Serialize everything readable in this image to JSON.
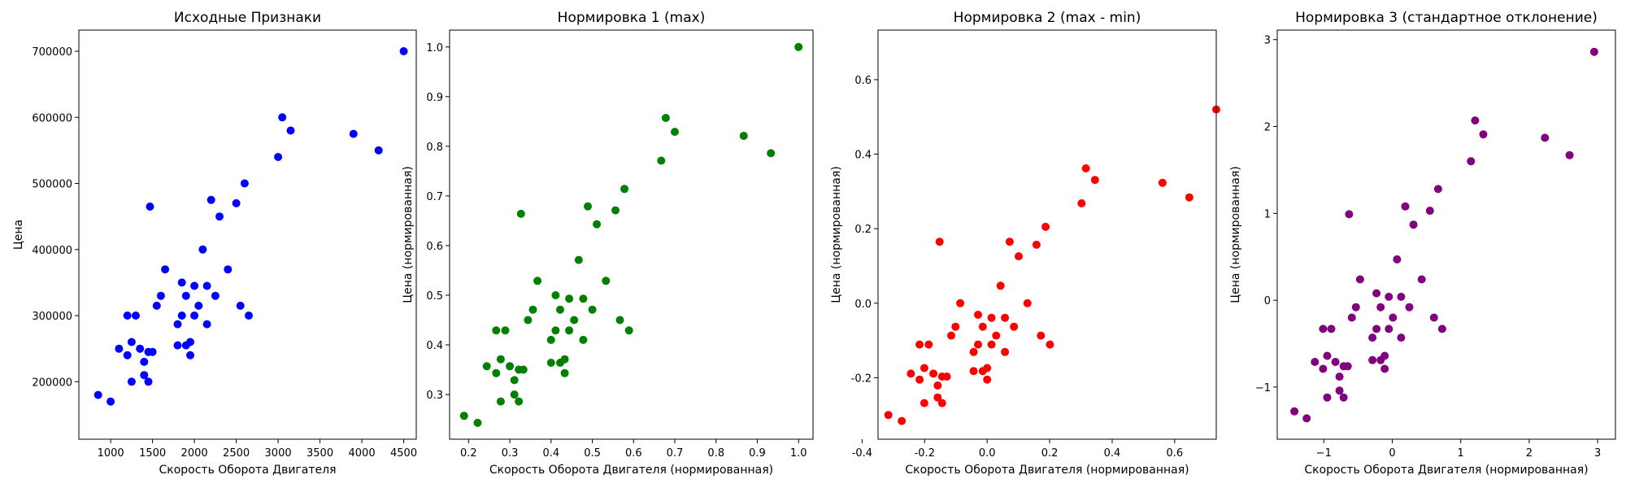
{
  "chart_data": [
    {
      "type": "scatter",
      "title": "Исходные Признаки",
      "xlabel": "Скорость Оборота Двигателя",
      "ylabel": "Цена",
      "xlim": [
        620,
        4650
      ],
      "ylim": [
        113000,
        732000
      ],
      "xticks": [
        1000,
        1500,
        2000,
        2500,
        3000,
        3500,
        4000,
        4500
      ],
      "xtick_labels": [
        "1000",
        "1500",
        "2000",
        "2500",
        "3000",
        "3500",
        "4000",
        "4500"
      ],
      "yticks": [
        200000,
        300000,
        400000,
        500000,
        600000,
        700000
      ],
      "ytick_labels": [
        "200000",
        "300000",
        "400000",
        "500000",
        "600000",
        "700000"
      ],
      "color": "#0000ff",
      "grid": false,
      "x": [
        850,
        1000,
        1100,
        1200,
        1200,
        1250,
        1250,
        1300,
        1350,
        1400,
        1400,
        1450,
        1450,
        1500,
        1550,
        1600,
        1650,
        1800,
        1800,
        1850,
        1850,
        1900,
        1900,
        1950,
        1950,
        2000,
        2000,
        2050,
        2100,
        2150,
        2150,
        2200,
        2250,
        2300,
        2400,
        2500,
        2550,
        2600,
        2650,
        3000,
        3050,
        3150,
        3900,
        4200,
        4500,
        1470
      ],
      "y": [
        180000,
        170000,
        250000,
        240000,
        300000,
        200000,
        260000,
        300000,
        250000,
        210000,
        230000,
        200000,
        245000,
        245000,
        315000,
        330000,
        370000,
        255000,
        287000,
        300000,
        350000,
        255000,
        330000,
        240000,
        260000,
        300000,
        345000,
        315000,
        400000,
        287000,
        345000,
        475000,
        330000,
        450000,
        370000,
        470000,
        315000,
        500000,
        300000,
        540000,
        600000,
        580000,
        575000,
        550000,
        700000,
        465000
      ]
    },
    {
      "type": "scatter",
      "title": "Нормировка 1 (max)",
      "xlabel": "Скорость Оборота Двигателя (нормированная)",
      "ylabel": "Цена (нормированная)",
      "xlim": [
        0.154,
        1.035
      ],
      "ylim": [
        0.21,
        1.034
      ],
      "xticks": [
        0.2,
        0.3,
        0.4,
        0.5,
        0.6,
        0.7,
        0.8,
        0.9,
        1.0
      ],
      "xtick_labels": [
        "0.2",
        "0.3",
        "0.4",
        "0.5",
        "0.6",
        "0.7",
        "0.8",
        "0.9",
        "1.0"
      ],
      "yticks": [
        0.3,
        0.4,
        0.5,
        0.6,
        0.7,
        0.8,
        0.9,
        1.0
      ],
      "ytick_labels": [
        "0.3",
        "0.4",
        "0.5",
        "0.6",
        "0.7",
        "0.8",
        "0.9",
        "1.0"
      ],
      "color": "#008000",
      "grid": false,
      "x": [
        0.189,
        0.222,
        0.244,
        0.267,
        0.267,
        0.278,
        0.278,
        0.289,
        0.3,
        0.311,
        0.311,
        0.322,
        0.322,
        0.333,
        0.344,
        0.356,
        0.367,
        0.4,
        0.4,
        0.411,
        0.411,
        0.422,
        0.422,
        0.433,
        0.433,
        0.444,
        0.444,
        0.456,
        0.467,
        0.478,
        0.478,
        0.489,
        0.5,
        0.511,
        0.533,
        0.556,
        0.567,
        0.578,
        0.589,
        0.667,
        0.678,
        0.7,
        0.867,
        0.933,
        1.0,
        0.327
      ],
      "y": [
        0.257,
        0.243,
        0.357,
        0.343,
        0.429,
        0.286,
        0.371,
        0.429,
        0.357,
        0.3,
        0.329,
        0.286,
        0.35,
        0.35,
        0.45,
        0.471,
        0.529,
        0.364,
        0.41,
        0.429,
        0.5,
        0.364,
        0.471,
        0.343,
        0.371,
        0.429,
        0.493,
        0.45,
        0.571,
        0.41,
        0.493,
        0.679,
        0.471,
        0.643,
        0.529,
        0.671,
        0.45,
        0.714,
        0.429,
        0.771,
        0.857,
        0.829,
        0.821,
        0.786,
        1.0,
        0.664
      ]
    },
    {
      "type": "scatter",
      "title": "Нормировка 2 (max - min)",
      "xlabel": "Скорость Оборота Двигателя (нормированная)",
      "ylabel": "Цена (нормированная)",
      "xlim": [
        -0.349,
        0.733
      ],
      "ylim": [
        -0.365,
        0.733
      ],
      "xticks": [
        -0.4,
        -0.2,
        0.0,
        0.2,
        0.4,
        0.6
      ],
      "xtick_labels": [
        "-0.4",
        "-0.2",
        "0.0",
        "0.2",
        "0.4",
        "0.6"
      ],
      "yticks": [
        -0.2,
        0.0,
        0.2,
        0.4,
        0.6
      ],
      "ytick_labels": [
        "-0.2",
        "0.0",
        "0.2",
        "0.4",
        "0.6"
      ],
      "color": "#ff0000",
      "grid": false,
      "x": [
        -0.316,
        -0.273,
        -0.244,
        -0.216,
        -0.216,
        -0.201,
        -0.201,
        -0.187,
        -0.172,
        -0.158,
        -0.158,
        -0.144,
        -0.144,
        -0.129,
        -0.115,
        -0.101,
        -0.086,
        -0.043,
        -0.043,
        -0.029,
        -0.029,
        -0.014,
        -0.014,
        0.0,
        0.0,
        0.014,
        0.014,
        0.029,
        0.043,
        0.057,
        0.057,
        0.072,
        0.086,
        0.101,
        0.129,
        0.158,
        0.172,
        0.187,
        0.201,
        0.302,
        0.316,
        0.345,
        0.561,
        0.647,
        0.733,
        -0.152
      ],
      "y": [
        -0.3,
        -0.316,
        -0.189,
        -0.205,
        -0.111,
        -0.268,
        -0.174,
        -0.111,
        -0.189,
        -0.253,
        -0.221,
        -0.268,
        -0.197,
        -0.197,
        -0.087,
        -0.063,
        0.0,
        -0.182,
        -0.131,
        -0.111,
        -0.031,
        -0.182,
        -0.063,
        -0.205,
        -0.174,
        -0.111,
        -0.039,
        -0.087,
        0.047,
        -0.131,
        -0.039,
        0.165,
        -0.063,
        0.126,
        0.0,
        0.157,
        -0.087,
        0.205,
        -0.111,
        0.268,
        0.362,
        0.331,
        0.323,
        0.284,
        0.52,
        0.165
      ]
    },
    {
      "type": "scatter",
      "title": "Нормировка 3 (стандартное отклонение)",
      "xlabel": "Скорость Оборота Двигателя (нормированная)",
      "ylabel": "Цена (нормированная)",
      "xlim": [
        -1.68,
        3.26
      ],
      "ylim": [
        -1.6,
        3.11
      ],
      "xticks": [
        -1,
        0,
        1,
        2,
        3
      ],
      "xtick_labels": [
        "−1",
        "0",
        "1",
        "2",
        "3"
      ],
      "yticks": [
        -1,
        0,
        1,
        2,
        3
      ],
      "ytick_labels": [
        "−1",
        "0",
        "1",
        "2",
        "3"
      ],
      "color": "#800080",
      "grid": false,
      "x": [
        -1.43,
        -1.25,
        -1.13,
        -1.01,
        -1.01,
        -0.95,
        -0.95,
        -0.89,
        -0.83,
        -0.77,
        -0.77,
        -0.71,
        -0.71,
        -0.65,
        -0.59,
        -0.53,
        -0.47,
        -0.29,
        -0.29,
        -0.23,
        -0.23,
        -0.17,
        -0.17,
        -0.11,
        -0.11,
        -0.05,
        -0.05,
        0.01,
        0.07,
        0.13,
        0.13,
        0.19,
        0.25,
        0.31,
        0.43,
        0.55,
        0.61,
        0.67,
        0.73,
        1.15,
        1.21,
        1.33,
        2.23,
        2.59,
        2.95,
        -0.63
      ],
      "y": [
        -1.28,
        -1.36,
        -0.71,
        -0.79,
        -0.33,
        -1.12,
        -0.64,
        -0.33,
        -0.71,
        -1.04,
        -0.88,
        -1.12,
        -0.76,
        -0.76,
        -0.2,
        -0.08,
        0.24,
        -0.69,
        -0.43,
        -0.33,
        0.08,
        -0.69,
        -0.08,
        -0.79,
        -0.64,
        -0.33,
        0.04,
        -0.2,
        0.47,
        -0.43,
        0.04,
        1.08,
        -0.08,
        0.87,
        0.24,
        1.03,
        -0.2,
        1.28,
        -0.33,
        1.6,
        2.07,
        1.91,
        1.87,
        1.67,
        2.86,
        0.99
      ]
    }
  ]
}
